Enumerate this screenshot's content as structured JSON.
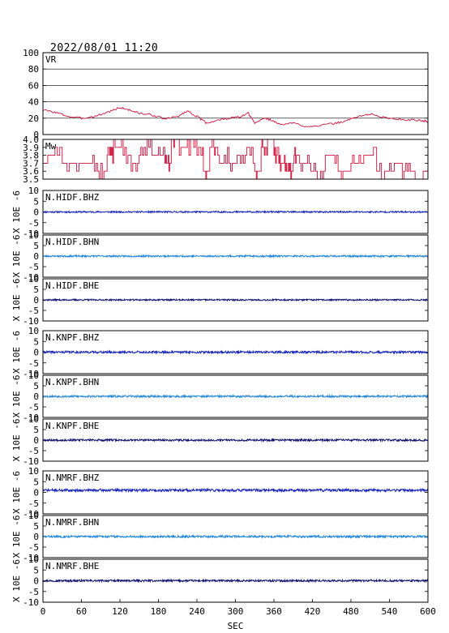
{
  "header": {
    "timestamp": "2022/08/01 11:20"
  },
  "colors": {
    "vr_line": "#d0103a",
    "mw_line": "#d0103a",
    "bhz": "#1420b8",
    "bhn": "#1e86dc",
    "bhe": "#101070"
  },
  "chart_data": [
    {
      "type": "line",
      "label": "VR",
      "ylim": [
        0,
        100
      ],
      "yticks": [
        "100",
        "80",
        "60",
        "40",
        "20",
        "0"
      ],
      "grid": true,
      "series": [
        {
          "x": [
            0,
            20,
            40,
            60,
            80,
            100,
            120,
            135,
            150,
            170,
            190,
            210,
            225,
            240,
            255,
            270,
            290,
            310,
            320,
            330,
            345,
            355,
            370,
            390,
            410,
            430,
            450,
            470,
            490,
            510,
            530,
            550,
            570,
            590,
            600
          ],
          "values": [
            30,
            27,
            22,
            20,
            22,
            27,
            33,
            30,
            26,
            24,
            19,
            22,
            29,
            22,
            14,
            17,
            20,
            22,
            26,
            14,
            20,
            18,
            12,
            14,
            10,
            11,
            13,
            16,
            22,
            25,
            21,
            19,
            18,
            17,
            16
          ]
        }
      ]
    },
    {
      "type": "line",
      "label": "Mw",
      "ylim": [
        3.5,
        4.0
      ],
      "yticks": [
        "4.0",
        "3.9",
        "3.8",
        "3.7",
        "3.6",
        "3.5"
      ],
      "grid": false,
      "series": [
        {
          "x": [
            0,
            30,
            60,
            80,
            100,
            110,
            130,
            150,
            170,
            190,
            200,
            210,
            230,
            240,
            250,
            260,
            270,
            290,
            310,
            330,
            340,
            350,
            360,
            370,
            380,
            390,
            400,
            420,
            440,
            460,
            480,
            500,
            520,
            540,
            560,
            580,
            600
          ],
          "values": [
            3.8,
            3.7,
            3.7,
            3.6,
            3.8,
            3.9,
            3.7,
            3.9,
            3.8,
            3.7,
            4.0,
            3.9,
            4.0,
            3.8,
            3.6,
            3.9,
            3.8,
            3.7,
            3.8,
            3.6,
            3.9,
            4.0,
            3.8,
            3.7,
            3.6,
            3.8,
            3.7,
            3.6,
            3.8,
            3.6,
            3.7,
            3.8,
            3.6,
            3.7,
            3.6,
            3.5,
            3.7
          ]
        }
      ]
    },
    {
      "type": "line",
      "label": "N.HIDF.BHZ",
      "ylim": [
        -10,
        10
      ],
      "yticks": [
        "10",
        "5",
        "0",
        "-5",
        "-10"
      ],
      "ylabel": "X 10E -6",
      "color_key": "bhz",
      "amplitude": 0.35,
      "seed": 11,
      "series": [
        {
          "name": "N.HIDF.BHZ",
          "values": [
            0,
            0,
            0,
            0,
            0,
            0,
            0,
            0,
            0,
            0,
            0,
            0,
            0
          ]
        }
      ]
    },
    {
      "type": "line",
      "label": "N.HIDF.BHN",
      "ylim": [
        -10,
        10
      ],
      "yticks": [
        "10",
        "5",
        "0",
        "-5",
        "-10"
      ],
      "ylabel": "X 10E -6",
      "color_key": "bhn",
      "amplitude": 0.4,
      "seed": 23,
      "series": [
        {
          "name": "N.HIDF.BHN",
          "values": [
            0,
            0,
            0,
            0,
            0,
            0,
            0,
            0,
            0,
            0,
            0,
            0,
            0
          ]
        }
      ]
    },
    {
      "type": "line",
      "label": "N.HIDF.BHE",
      "ylim": [
        -10,
        10
      ],
      "yticks": [
        "10",
        "5",
        "0",
        "-5",
        "-10"
      ],
      "ylabel": "X 10E -6",
      "color_key": "bhe",
      "amplitude": 0.35,
      "seed": 37,
      "series": [
        {
          "name": "N.HIDF.BHE",
          "values": [
            0,
            0,
            0,
            0,
            0,
            0,
            0,
            0,
            0,
            0,
            0,
            0,
            0
          ]
        }
      ]
    },
    {
      "type": "line",
      "label": "N.KNPF.BHZ",
      "ylim": [
        -10,
        10
      ],
      "yticks": [
        "10",
        "5",
        "0",
        "-5",
        "-10"
      ],
      "ylabel": "X 10E -6",
      "color_key": "bhz",
      "amplitude": 0.5,
      "seed": 41,
      "series": [
        {
          "name": "N.KNPF.BHZ",
          "values": [
            0,
            0,
            0,
            0,
            0,
            0,
            0,
            0,
            0,
            0,
            0,
            0,
            0
          ]
        }
      ]
    },
    {
      "type": "line",
      "label": "N.KNPF.BHN",
      "ylim": [
        -10,
        10
      ],
      "yticks": [
        "10",
        "5",
        "0",
        "-5",
        "-10"
      ],
      "ylabel": "X 10E -6",
      "color_key": "bhn",
      "amplitude": 0.45,
      "seed": 53,
      "series": [
        {
          "name": "N.KNPF.BHN",
          "values": [
            0,
            0,
            0,
            0,
            0,
            0,
            0,
            0,
            0,
            0,
            0,
            0,
            0
          ]
        }
      ]
    },
    {
      "type": "line",
      "label": "N.KNPF.BHE",
      "ylim": [
        -10,
        10
      ],
      "yticks": [
        "10",
        "5",
        "0",
        "-5",
        "-10"
      ],
      "ylabel": "X 10E -6",
      "color_key": "bhe",
      "amplitude": 0.45,
      "seed": 67,
      "series": [
        {
          "name": "N.KNPF.BHE",
          "values": [
            0,
            0,
            0,
            0,
            0,
            0,
            0,
            0,
            0,
            0,
            0,
            0,
            0
          ]
        }
      ]
    },
    {
      "type": "line",
      "label": "N.NMRF.BHZ",
      "ylim": [
        -10,
        10
      ],
      "yticks": [
        "10",
        "5",
        "0",
        "-5",
        "-10"
      ],
      "ylabel": "X 10E -6",
      "color_key": "bhz",
      "amplitude": 0.6,
      "seed": 71,
      "series": [
        {
          "name": "N.NMRF.BHZ",
          "values": [
            1,
            1,
            1,
            1,
            1,
            1,
            1,
            1,
            1,
            1,
            1,
            1,
            1
          ]
        }
      ]
    },
    {
      "type": "line",
      "label": "N.NMRF.BHN",
      "ylim": [
        -10,
        10
      ],
      "yticks": [
        "10",
        "5",
        "0",
        "-5",
        "-10"
      ],
      "ylabel": "X 10E -6",
      "color_key": "bhn",
      "amplitude": 0.5,
      "seed": 83,
      "series": [
        {
          "name": "N.NMRF.BHN",
          "values": [
            0,
            0,
            0,
            0,
            0,
            0,
            0,
            0,
            0,
            0,
            0,
            0,
            0
          ]
        }
      ]
    },
    {
      "type": "line",
      "label": "N.NMRF.BHE",
      "ylim": [
        -10,
        10
      ],
      "yticks": [
        "10",
        "5",
        "0",
        "-5",
        "-10"
      ],
      "ylabel": "X 10E -6",
      "color_key": "bhe",
      "amplitude": 0.45,
      "seed": 97,
      "series": [
        {
          "name": "N.NMRF.BHE",
          "values": [
            0,
            0,
            0,
            0,
            0,
            0,
            0,
            0,
            0,
            0,
            0,
            0,
            0
          ]
        }
      ]
    }
  ],
  "x_axis": {
    "xlim": [
      0,
      600
    ],
    "ticks": [
      "0",
      "60",
      "120",
      "180",
      "240",
      "300",
      "360",
      "420",
      "480",
      "540",
      "600"
    ],
    "xlabel": "SEC"
  }
}
